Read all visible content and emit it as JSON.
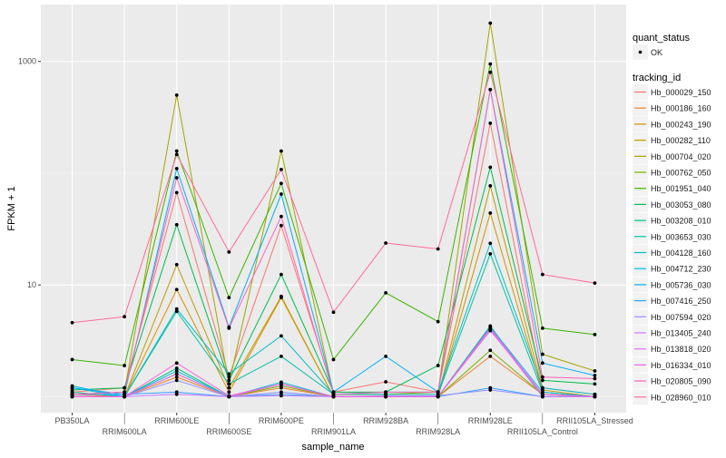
{
  "chart_data": {
    "type": "line",
    "xlabel": "sample_name",
    "ylabel": "FPKM + 1",
    "y_scale": "log10",
    "ylim": [
      0.72,
      3230
    ],
    "y_ticks": [
      10,
      1000
    ],
    "y_tick_labels": [
      "10",
      "1000"
    ],
    "grid": true,
    "legend_position": "right",
    "categories": [
      "PB350LA",
      "RRIM600LA",
      "RRIM600LE",
      "RRIM600SE",
      "RRIM600PE",
      "RRIM901LA",
      "RRIM928BA",
      "RRIM928LA",
      "RRIM928LE",
      "RRII105LA_Control",
      "RRII105LA_Stressed"
    ],
    "shape_legend": {
      "title": "quant_status",
      "entries": [
        "OK"
      ]
    },
    "color_legend_title": "tracking_id",
    "series": [
      {
        "name": "Hb_000029_150",
        "color": "#F8766D",
        "values": [
          1.1,
          1.2,
          67,
          1.5,
          34,
          1.1,
          1.36,
          1.1,
          280,
          1.2,
          1.05
        ]
      },
      {
        "name": "Hb_000186_160",
        "color": "#EA8331",
        "values": [
          1.05,
          1,
          1.5,
          1,
          1.2,
          1,
          1,
          1,
          2.3,
          1.05,
          1
        ]
      },
      {
        "name": "Hb_000243_190",
        "color": "#D89000",
        "values": [
          1,
          1,
          9.1,
          1.1,
          7.7,
          1,
          1,
          1,
          44,
          1.1,
          1
        ]
      },
      {
        "name": "Hb_000282_110",
        "color": "#C09B00",
        "values": [
          1,
          1,
          15.2,
          1.2,
          7.9,
          1,
          1,
          1,
          77,
          1.15,
          1
        ]
      },
      {
        "name": "Hb_000704_020",
        "color": "#A3A500",
        "values": [
          1.05,
          1.1,
          500,
          1.3,
          158,
          1.05,
          1.05,
          1.1,
          2200,
          2.4,
          1.7
        ]
      },
      {
        "name": "Hb_000762_050",
        "color": "#7CAE00",
        "values": [
          1,
          1,
          1.6,
          1,
          1.25,
          1,
          1,
          1,
          2.6,
          1.05,
          1
        ]
      },
      {
        "name": "Hb_001951_040",
        "color": "#39B600",
        "values": [
          2.15,
          1.9,
          158,
          7.7,
          81,
          2.15,
          8.5,
          4.7,
          950,
          4.1,
          3.6
        ]
      },
      {
        "name": "Hb_003053_080",
        "color": "#00BB4E",
        "values": [
          1.15,
          1.2,
          34.6,
          1.4,
          12.4,
          1.1,
          1.1,
          1.9,
          113,
          1.4,
          1.3
        ]
      },
      {
        "name": "Hb_003208_010",
        "color": "#00BF7D",
        "values": [
          1,
          1,
          1.8,
          1,
          1.3,
          1,
          1,
          1,
          4.3,
          1,
          1
        ]
      },
      {
        "name": "Hb_003653_030",
        "color": "#00C1A3",
        "values": [
          1.1,
          1,
          5.8,
          1.3,
          2.3,
          1.05,
          1.05,
          1.05,
          19,
          1.1,
          1
        ]
      },
      {
        "name": "Hb_004128_160",
        "color": "#00BFC4",
        "values": [
          1.2,
          1,
          6.1,
          1.6,
          3.5,
          1.05,
          1.1,
          1.1,
          23.6,
          1.2,
          1.05
        ]
      },
      {
        "name": "Hb_004712_230",
        "color": "#00BAE0",
        "values": [
          1.25,
          1,
          1.7,
          1,
          1.35,
          1,
          1,
          1,
          4.2,
          1.1,
          1
        ]
      },
      {
        "name": "Hb_005736_030",
        "color": "#00B0F6",
        "values": [
          1.2,
          1.05,
          110,
          4.2,
          65,
          1.1,
          2.3,
          1.1,
          560,
          2.0,
          1.55
        ]
      },
      {
        "name": "Hb_007416_250",
        "color": "#35A2FF",
        "values": [
          1.05,
          1.05,
          1.1,
          1,
          1.05,
          1,
          1,
          1,
          1.2,
          1,
          1
        ]
      },
      {
        "name": "Hb_007594_020",
        "color": "#9590FF",
        "values": [
          1,
          1,
          1.4,
          1,
          1.1,
          1,
          1.02,
          1.02,
          1.15,
          1,
          1
        ]
      },
      {
        "name": "Hb_013405_240",
        "color": "#C77CFF",
        "values": [
          1,
          1,
          1.05,
          1,
          1.02,
          1,
          1,
          1,
          4.0,
          1,
          1
        ]
      },
      {
        "name": "Hb_013818_020",
        "color": "#E76BF3",
        "values": [
          1,
          1,
          1.6,
          1,
          1.3,
          1,
          1,
          1,
          3.9,
          1.05,
          1
        ]
      },
      {
        "name": "Hb_016334_010",
        "color": "#FA62DB",
        "values": [
          1,
          1,
          2.0,
          1.02,
          1.3,
          1,
          1,
          1,
          4.1,
          1.05,
          1
        ]
      },
      {
        "name": "Hb_020805_090",
        "color": "#FF62BC",
        "values": [
          1.05,
          1.1,
          91,
          4.1,
          41,
          1.05,
          1.1,
          1.1,
          560,
          1.5,
          1.45
        ]
      },
      {
        "name": "Hb_028960_010",
        "color": "#FF6A98",
        "values": [
          4.6,
          5.2,
          147,
          19.7,
          108,
          5.7,
          23.7,
          21,
          800,
          12.4,
          10.4
        ]
      }
    ]
  }
}
